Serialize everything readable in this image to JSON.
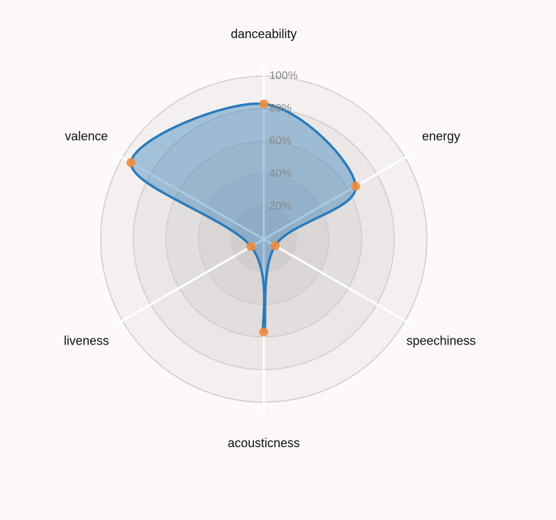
{
  "chart_data": {
    "type": "radar",
    "categories": [
      "danceability",
      "energy",
      "speechiness",
      "acousticness",
      "liveness",
      "valence"
    ],
    "series": [
      {
        "color": "#2b7bba",
        "marker_color": "#f28c3a",
        "values": [
          83,
          65,
          8,
          57,
          9,
          94
        ]
      }
    ],
    "rlim": [
      0,
      100
    ],
    "rticks": [
      {
        "value": 20,
        "label": "20%"
      },
      {
        "value": 40,
        "label": "40%"
      },
      {
        "value": 60,
        "label": "60%"
      },
      {
        "value": 80,
        "label": "80%"
      },
      {
        "value": 100,
        "label": "100%"
      }
    ],
    "grid": true
  }
}
